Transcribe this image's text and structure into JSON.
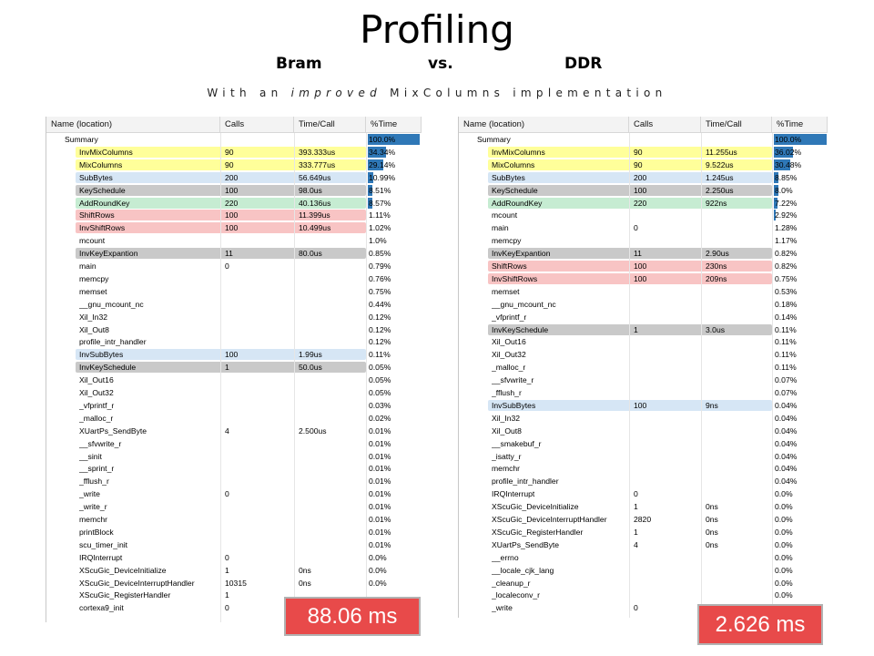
{
  "title": "Profiling",
  "subtitle": {
    "left": "Bram",
    "mid": "vs.",
    "right": "DDR"
  },
  "subtitle2": {
    "p1": "With an ",
    "p2": "improved",
    "p3": " MixColumns implementation"
  },
  "columns": {
    "name": "Name (location)",
    "calls": "Calls",
    "time": "Time/Call",
    "pct": "%Time"
  },
  "highlight_colors": {
    "yellow": "#ffff9a",
    "blue": "#d6e6f5",
    "gray": "#c9c9c9",
    "green": "#c6ecd2",
    "red": "#f8c4c4",
    "bar": "#2f78b7",
    "badge": "#e84a4a"
  },
  "left_panel": {
    "badge": "88.06 ms",
    "rows": [
      {
        "name": "Summary",
        "calls": "",
        "time": "",
        "pct": "100.0%",
        "bar": 100,
        "indent": 0,
        "hl": ""
      },
      {
        "name": "InvMixColumns",
        "calls": "90",
        "time": "393.333us",
        "pct": "34.34%",
        "bar": 34.34,
        "indent": 1,
        "hl": "yellow"
      },
      {
        "name": "MixColumns",
        "calls": "90",
        "time": "333.777us",
        "pct": "29.14%",
        "bar": 29.14,
        "indent": 1,
        "hl": "yellow"
      },
      {
        "name": "SubBytes",
        "calls": "200",
        "time": "56.649us",
        "pct": "10.99%",
        "bar": 10.99,
        "indent": 1,
        "hl": "blue"
      },
      {
        "name": "KeySchedule",
        "calls": "100",
        "time": "98.0us",
        "pct": "8.51%",
        "bar": 8.51,
        "indent": 1,
        "hl": "gray"
      },
      {
        "name": "AddRoundKey",
        "calls": "220",
        "time": "40.136us",
        "pct": "8.57%",
        "bar": 8.57,
        "indent": 1,
        "hl": "green"
      },
      {
        "name": "ShiftRows",
        "calls": "100",
        "time": "11.399us",
        "pct": "1.11%",
        "bar": 0,
        "indent": 1,
        "hl": "red"
      },
      {
        "name": "InvShiftRows",
        "calls": "100",
        "time": "10.499us",
        "pct": "1.02%",
        "bar": 0,
        "indent": 1,
        "hl": "red"
      },
      {
        "name": "mcount",
        "calls": "",
        "time": "",
        "pct": "1.0%",
        "bar": 0,
        "indent": 1,
        "hl": ""
      },
      {
        "name": "InvKeyExpantion",
        "calls": "11",
        "time": "80.0us",
        "pct": "0.85%",
        "bar": 0,
        "indent": 1,
        "hl": "gray"
      },
      {
        "name": "main",
        "calls": "0",
        "time": "",
        "pct": "0.79%",
        "bar": 0,
        "indent": 1,
        "hl": ""
      },
      {
        "name": "memcpy",
        "calls": "",
        "time": "",
        "pct": "0.76%",
        "bar": 0,
        "indent": 1,
        "hl": ""
      },
      {
        "name": "memset",
        "calls": "",
        "time": "",
        "pct": "0.75%",
        "bar": 0,
        "indent": 1,
        "hl": ""
      },
      {
        "name": "__gnu_mcount_nc",
        "calls": "",
        "time": "",
        "pct": "0.44%",
        "bar": 0,
        "indent": 1,
        "hl": ""
      },
      {
        "name": "Xil_In32",
        "calls": "",
        "time": "",
        "pct": "0.12%",
        "bar": 0,
        "indent": 1,
        "hl": ""
      },
      {
        "name": "Xil_Out8",
        "calls": "",
        "time": "",
        "pct": "0.12%",
        "bar": 0,
        "indent": 1,
        "hl": ""
      },
      {
        "name": "profile_intr_handler",
        "calls": "",
        "time": "",
        "pct": "0.12%",
        "bar": 0,
        "indent": 1,
        "hl": ""
      },
      {
        "name": "InvSubBytes",
        "calls": "100",
        "time": "1.99us",
        "pct": "0.11%",
        "bar": 0,
        "indent": 1,
        "hl": "blue"
      },
      {
        "name": "InvKeySchedule",
        "calls": "1",
        "time": "50.0us",
        "pct": "0.05%",
        "bar": 0,
        "indent": 1,
        "hl": "gray"
      },
      {
        "name": "Xil_Out16",
        "calls": "",
        "time": "",
        "pct": "0.05%",
        "bar": 0,
        "indent": 1,
        "hl": ""
      },
      {
        "name": "Xil_Out32",
        "calls": "",
        "time": "",
        "pct": "0.05%",
        "bar": 0,
        "indent": 1,
        "hl": ""
      },
      {
        "name": "_vfprintf_r",
        "calls": "",
        "time": "",
        "pct": "0.03%",
        "bar": 0,
        "indent": 1,
        "hl": ""
      },
      {
        "name": "_malloc_r",
        "calls": "",
        "time": "",
        "pct": "0.02%",
        "bar": 0,
        "indent": 1,
        "hl": ""
      },
      {
        "name": "XUartPs_SendByte",
        "calls": "4",
        "time": "2.500us",
        "pct": "0.01%",
        "bar": 0,
        "indent": 1,
        "hl": ""
      },
      {
        "name": "__sfvwrite_r",
        "calls": "",
        "time": "",
        "pct": "0.01%",
        "bar": 0,
        "indent": 1,
        "hl": ""
      },
      {
        "name": "__sinit",
        "calls": "",
        "time": "",
        "pct": "0.01%",
        "bar": 0,
        "indent": 1,
        "hl": ""
      },
      {
        "name": "__sprint_r",
        "calls": "",
        "time": "",
        "pct": "0.01%",
        "bar": 0,
        "indent": 1,
        "hl": ""
      },
      {
        "name": "_fflush_r",
        "calls": "",
        "time": "",
        "pct": "0.01%",
        "bar": 0,
        "indent": 1,
        "hl": ""
      },
      {
        "name": "_write",
        "calls": "0",
        "time": "",
        "pct": "0.01%",
        "bar": 0,
        "indent": 1,
        "hl": ""
      },
      {
        "name": "_write_r",
        "calls": "",
        "time": "",
        "pct": "0.01%",
        "bar": 0,
        "indent": 1,
        "hl": ""
      },
      {
        "name": "memchr",
        "calls": "",
        "time": "",
        "pct": "0.01%",
        "bar": 0,
        "indent": 1,
        "hl": ""
      },
      {
        "name": "printBlock",
        "calls": "",
        "time": "",
        "pct": "0.01%",
        "bar": 0,
        "indent": 1,
        "hl": ""
      },
      {
        "name": "scu_timer_init",
        "calls": "",
        "time": "",
        "pct": "0.01%",
        "bar": 0,
        "indent": 1,
        "hl": ""
      },
      {
        "name": "IRQInterrupt",
        "calls": "0",
        "time": "",
        "pct": "0.0%",
        "bar": 0,
        "indent": 1,
        "hl": ""
      },
      {
        "name": "XScuGic_DeviceInitialize",
        "calls": "1",
        "time": "0ns",
        "pct": "0.0%",
        "bar": 0,
        "indent": 1,
        "hl": ""
      },
      {
        "name": "XScuGic_DeviceInterruptHandler",
        "calls": "10315",
        "time": "0ns",
        "pct": "0.0%",
        "bar": 0,
        "indent": 1,
        "hl": ""
      },
      {
        "name": "XScuGic_RegisterHandler",
        "calls": "1",
        "time": "",
        "pct": "",
        "bar": 0,
        "indent": 1,
        "hl": ""
      },
      {
        "name": "cortexa9_init",
        "calls": "0",
        "time": "",
        "pct": "",
        "bar": 0,
        "indent": 1,
        "hl": ""
      }
    ]
  },
  "right_panel": {
    "badge": "2.626 ms",
    "rows": [
      {
        "name": "Summary",
        "calls": "",
        "time": "",
        "pct": "100.0%",
        "bar": 100,
        "indent": 0,
        "hl": ""
      },
      {
        "name": "InvMixColumns",
        "calls": "90",
        "time": "11.255us",
        "pct": "36.02%",
        "bar": 36.02,
        "indent": 1,
        "hl": "yellow"
      },
      {
        "name": "MixColumns",
        "calls": "90",
        "time": "9.522us",
        "pct": "30.48%",
        "bar": 30.48,
        "indent": 1,
        "hl": "yellow"
      },
      {
        "name": "SubBytes",
        "calls": "200",
        "time": "1.245us",
        "pct": "8.85%",
        "bar": 8.85,
        "indent": 1,
        "hl": "blue"
      },
      {
        "name": "KeySchedule",
        "calls": "100",
        "time": "2.250us",
        "pct": "8.0%",
        "bar": 8.0,
        "indent": 1,
        "hl": "gray"
      },
      {
        "name": "AddRoundKey",
        "calls": "220",
        "time": "922ns",
        "pct": "7.22%",
        "bar": 7.22,
        "indent": 1,
        "hl": "green"
      },
      {
        "name": "mcount",
        "calls": "",
        "time": "",
        "pct": "2.92%",
        "bar": 2.92,
        "indent": 1,
        "hl": ""
      },
      {
        "name": "main",
        "calls": "0",
        "time": "",
        "pct": "1.28%",
        "bar": 0,
        "indent": 1,
        "hl": ""
      },
      {
        "name": "memcpy",
        "calls": "",
        "time": "",
        "pct": "1.17%",
        "bar": 0,
        "indent": 1,
        "hl": ""
      },
      {
        "name": "InvKeyExpantion",
        "calls": "11",
        "time": "2.90us",
        "pct": "0.82%",
        "bar": 0,
        "indent": 1,
        "hl": "gray"
      },
      {
        "name": "ShiftRows",
        "calls": "100",
        "time": "230ns",
        "pct": "0.82%",
        "bar": 0,
        "indent": 1,
        "hl": "red"
      },
      {
        "name": "InvShiftRows",
        "calls": "100",
        "time": "209ns",
        "pct": "0.75%",
        "bar": 0,
        "indent": 1,
        "hl": "red"
      },
      {
        "name": "memset",
        "calls": "",
        "time": "",
        "pct": "0.53%",
        "bar": 0,
        "indent": 1,
        "hl": ""
      },
      {
        "name": "__gnu_mcount_nc",
        "calls": "",
        "time": "",
        "pct": "0.18%",
        "bar": 0,
        "indent": 1,
        "hl": ""
      },
      {
        "name": "_vfprintf_r",
        "calls": "",
        "time": "",
        "pct": "0.14%",
        "bar": 0,
        "indent": 1,
        "hl": ""
      },
      {
        "name": "InvKeySchedule",
        "calls": "1",
        "time": "3.0us",
        "pct": "0.11%",
        "bar": 0,
        "indent": 1,
        "hl": "gray"
      },
      {
        "name": "Xil_Out16",
        "calls": "",
        "time": "",
        "pct": "0.11%",
        "bar": 0,
        "indent": 1,
        "hl": ""
      },
      {
        "name": "Xil_Out32",
        "calls": "",
        "time": "",
        "pct": "0.11%",
        "bar": 0,
        "indent": 1,
        "hl": ""
      },
      {
        "name": "_malloc_r",
        "calls": "",
        "time": "",
        "pct": "0.11%",
        "bar": 0,
        "indent": 1,
        "hl": ""
      },
      {
        "name": "__sfvwrite_r",
        "calls": "",
        "time": "",
        "pct": "0.07%",
        "bar": 0,
        "indent": 1,
        "hl": ""
      },
      {
        "name": "_fflush_r",
        "calls": "",
        "time": "",
        "pct": "0.07%",
        "bar": 0,
        "indent": 1,
        "hl": ""
      },
      {
        "name": "InvSubBytes",
        "calls": "100",
        "time": "9ns",
        "pct": "0.04%",
        "bar": 0,
        "indent": 1,
        "hl": "blue"
      },
      {
        "name": "Xil_In32",
        "calls": "",
        "time": "",
        "pct": "0.04%",
        "bar": 0,
        "indent": 1,
        "hl": ""
      },
      {
        "name": "Xil_Out8",
        "calls": "",
        "time": "",
        "pct": "0.04%",
        "bar": 0,
        "indent": 1,
        "hl": ""
      },
      {
        "name": "__smakebuf_r",
        "calls": "",
        "time": "",
        "pct": "0.04%",
        "bar": 0,
        "indent": 1,
        "hl": ""
      },
      {
        "name": "_isatty_r",
        "calls": "",
        "time": "",
        "pct": "0.04%",
        "bar": 0,
        "indent": 1,
        "hl": ""
      },
      {
        "name": "memchr",
        "calls": "",
        "time": "",
        "pct": "0.04%",
        "bar": 0,
        "indent": 1,
        "hl": ""
      },
      {
        "name": "profile_intr_handler",
        "calls": "",
        "time": "",
        "pct": "0.04%",
        "bar": 0,
        "indent": 1,
        "hl": ""
      },
      {
        "name": "IRQInterrupt",
        "calls": "0",
        "time": "",
        "pct": "0.0%",
        "bar": 0,
        "indent": 1,
        "hl": ""
      },
      {
        "name": "XScuGic_DeviceInitialize",
        "calls": "1",
        "time": "0ns",
        "pct": "0.0%",
        "bar": 0,
        "indent": 1,
        "hl": ""
      },
      {
        "name": "XScuGic_DeviceInterruptHandler",
        "calls": "2820",
        "time": "0ns",
        "pct": "0.0%",
        "bar": 0,
        "indent": 1,
        "hl": ""
      },
      {
        "name": "XScuGic_RegisterHandler",
        "calls": "1",
        "time": "0ns",
        "pct": "0.0%",
        "bar": 0,
        "indent": 1,
        "hl": ""
      },
      {
        "name": "XUartPs_SendByte",
        "calls": "4",
        "time": "0ns",
        "pct": "0.0%",
        "bar": 0,
        "indent": 1,
        "hl": ""
      },
      {
        "name": "__errno",
        "calls": "",
        "time": "",
        "pct": "0.0%",
        "bar": 0,
        "indent": 1,
        "hl": ""
      },
      {
        "name": "__locale_cjk_lang",
        "calls": "",
        "time": "",
        "pct": "0.0%",
        "bar": 0,
        "indent": 1,
        "hl": ""
      },
      {
        "name": "_cleanup_r",
        "calls": "",
        "time": "",
        "pct": "0.0%",
        "bar": 0,
        "indent": 1,
        "hl": ""
      },
      {
        "name": "_localeconv_r",
        "calls": "",
        "time": "",
        "pct": "0.0%",
        "bar": 0,
        "indent": 1,
        "hl": ""
      },
      {
        "name": "_write",
        "calls": "0",
        "time": "",
        "pct": "0.0%",
        "bar": 0,
        "indent": 1,
        "hl": ""
      }
    ]
  }
}
